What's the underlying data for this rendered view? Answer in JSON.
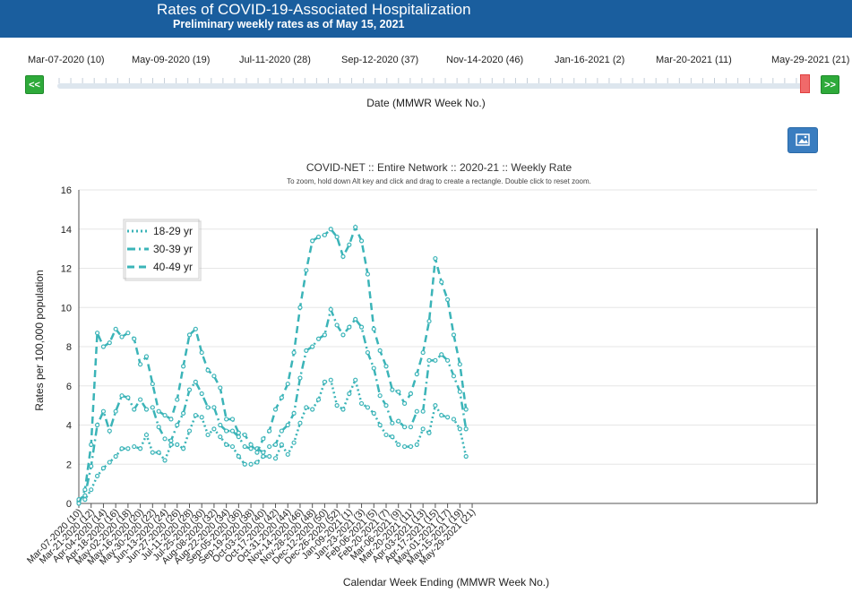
{
  "header": {
    "title": "Rates of COVID-19-Associated Hospitalization",
    "subtitle": "Preliminary weekly rates as of May 15, 2021"
  },
  "slider": {
    "labels": [
      "Mar-07-2020 (10)",
      "May-09-2020 (19)",
      "Jul-11-2020 (28)",
      "Sep-12-2020 (37)",
      "Nov-14-2020 (46)",
      "Jan-16-2021 (2)",
      "Mar-20-2021 (11)",
      "May-29-2021 (21)"
    ],
    "prev_label": "<<",
    "next_label": ">>",
    "axis_title": "Date (MMWR Week No.)",
    "selected_fraction": 1.0
  },
  "toolbar": {
    "image_button_icon": "image-icon"
  },
  "colors": {
    "banner": "#1a5e9e",
    "series": "#3bb4b8",
    "button": "#2eaa3a",
    "handle": "#f06a6a"
  },
  "chart_data": {
    "type": "line",
    "title": "COVID-NET :: Entire Network :: 2020-21 :: Weekly Rate",
    "subtitle": "To zoom, hold down Alt key and click and drag to create a rectangle. Double click to reset zoom.",
    "xlabel": "Calendar Week Ending (MMWR Week No.)",
    "ylabel": "Rates per 100,000 population",
    "ylim": [
      0,
      16
    ],
    "yticks": [
      0,
      2,
      4,
      6,
      8,
      10,
      12,
      14,
      16
    ],
    "legend_position": "top-left",
    "x_tick_labels": [
      "Mar-07-2020 (10)",
      "Mar-21-2020 (12)",
      "Apr-04-2020 (14)",
      "Apr-18-2020 (16)",
      "May-02-2020 (18)",
      "May-16-2020 (20)",
      "May-30-2020 (22)",
      "Jun-13-2020 (24)",
      "Jun-27-2020 (26)",
      "Jul-11-2020 (28)",
      "Jul-25-2020 (30)",
      "Aug-08-2020 (32)",
      "Aug-22-2020 (34)",
      "Sep-05-2020 (36)",
      "Sep-19-2020 (38)",
      "Oct-03-2020 (40)",
      "Oct-17-2020 (42)",
      "Oct-31-2020 (44)",
      "Nov-14-2020 (46)",
      "Nov-28-2020 (48)",
      "Dec-12-2020 (50)",
      "Dec-26-2020 (52)",
      "Jan-09-2021 (1)",
      "Jan-23-2021 (3)",
      "Feb-06-2021 (5)",
      "Feb-20-2021 (7)",
      "Mar-06-2021 (9)",
      "Mar-20-2021 (11)",
      "Apr-03-2021 (13)",
      "Apr-17-2021 (15)",
      "May-01-2021 (17)",
      "May-15-2021 (19)",
      "May-29-2021 (21)"
    ],
    "series": [
      {
        "name": "18-29 yr",
        "dash": "dotted",
        "values": [
          0.1,
          0.2,
          0.7,
          1.4,
          1.8,
          2.1,
          2.4,
          2.8,
          2.8,
          2.9,
          2.8,
          3.5,
          2.6,
          2.6,
          2.2,
          3.0,
          3.0,
          2.8,
          3.7,
          4.5,
          4.4,
          3.5,
          3.8,
          3.4,
          3.0,
          2.9,
          2.4,
          2.0,
          2.0,
          2.1,
          2.4,
          2.4,
          2.3,
          3.0,
          2.5,
          3.1,
          4.1,
          4.9,
          4.8,
          5.3,
          6.2,
          6.3,
          5.0,
          4.8,
          5.6,
          6.3,
          5.1,
          4.9,
          4.6,
          4.0,
          3.5,
          3.4,
          3.0,
          2.9,
          2.9,
          3.0,
          3.8,
          3.6,
          5.0,
          4.5,
          4.4,
          4.3,
          3.8,
          2.4
        ]
      },
      {
        "name": "30-39 yr",
        "dash": "dashdot",
        "values": [
          0.2,
          0.4,
          1.9,
          4.0,
          4.7,
          3.7,
          4.7,
          5.5,
          5.4,
          4.8,
          5.3,
          4.8,
          4.9,
          3.9,
          3.3,
          3.2,
          4.0,
          4.6,
          5.8,
          6.2,
          5.6,
          4.9,
          4.9,
          4.0,
          3.7,
          3.7,
          3.4,
          2.9,
          2.8,
          2.8,
          2.6,
          2.9,
          3.0,
          3.7,
          4.0,
          4.6,
          6.4,
          7.8,
          8.0,
          8.4,
          8.6,
          9.9,
          9.1,
          8.6,
          9.0,
          9.4,
          9.0,
          7.7,
          6.9,
          5.5,
          5.0,
          4.1,
          4.2,
          3.9,
          3.9,
          4.7,
          4.7,
          7.3,
          7.3,
          7.6,
          7.3,
          6.5,
          5.7,
          3.8
        ]
      },
      {
        "name": "40-49 yr",
        "dash": "dashed",
        "values": [
          0.0,
          0.7,
          3.0,
          8.7,
          8.0,
          8.2,
          8.9,
          8.5,
          8.7,
          8.4,
          7.1,
          7.5,
          6.1,
          4.7,
          4.5,
          4.3,
          5.3,
          7.0,
          8.6,
          8.9,
          7.7,
          6.8,
          6.5,
          5.9,
          4.3,
          4.3,
          3.6,
          3.5,
          3.0,
          2.6,
          3.3,
          3.7,
          4.8,
          5.4,
          6.1,
          7.7,
          10.0,
          11.9,
          13.4,
          13.6,
          13.7,
          14.0,
          13.6,
          12.6,
          13.2,
          14.1,
          13.4,
          11.7,
          8.9,
          7.8,
          7.0,
          5.8,
          5.7,
          5.1,
          5.6,
          6.6,
          7.7,
          9.3,
          12.5,
          11.3,
          10.4,
          8.6,
          7.1,
          4.8
        ]
      }
    ]
  }
}
